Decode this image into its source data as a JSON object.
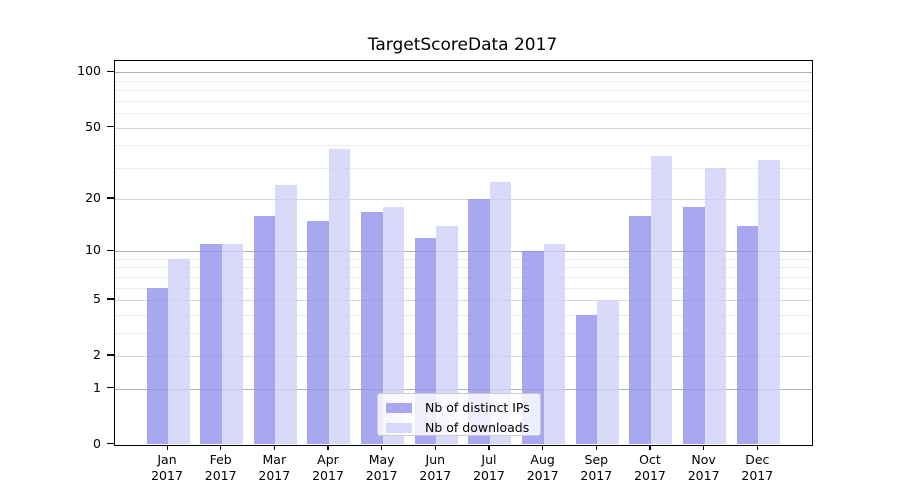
{
  "chart_data": {
    "type": "bar",
    "title": "TargetScoreData 2017",
    "categories": [
      "Jan",
      "Feb",
      "Mar",
      "Apr",
      "May",
      "Jun",
      "Jul",
      "Aug",
      "Sep",
      "Oct",
      "Nov",
      "Dec"
    ],
    "x_sublabel": "2017",
    "series": [
      {
        "name": "Nb of distinct IPs",
        "color": "rgba(146,146,236,0.8)",
        "values": [
          6,
          11,
          16,
          15,
          17,
          12,
          20,
          10,
          4,
          16,
          18,
          14
        ]
      },
      {
        "name": "Nb of downloads",
        "color": "rgba(208,208,249,0.8)",
        "values": [
          9,
          11,
          24,
          38,
          18,
          14,
          25,
          11,
          5,
          35,
          30,
          33
        ]
      }
    ],
    "xlabel": "",
    "ylabel": "",
    "yscale": "log1p",
    "ylim": [
      0,
      116
    ],
    "yticks": [
      0,
      1,
      2,
      5,
      10,
      20,
      50,
      100
    ],
    "minor_yticks": [
      3,
      4,
      6,
      7,
      8,
      9,
      30,
      40,
      60,
      70,
      80,
      90
    ],
    "grid": true,
    "legend_position": "lower center",
    "colors": {
      "power_grid": "#b0b0b0",
      "mid_grid": "#d8d8d8",
      "minor_grid": "#ececec",
      "spine": "#000000",
      "text": "#000000",
      "legend_border": "#cccccc"
    }
  }
}
